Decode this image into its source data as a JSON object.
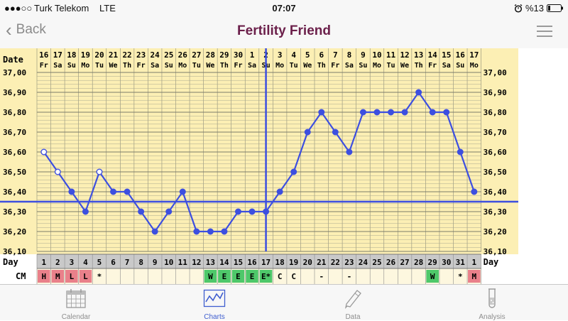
{
  "status_bar": {
    "signal": "●●●○○",
    "carrier": "Turk Telekom",
    "network": "LTE",
    "time": "07:07",
    "battery": "%13"
  },
  "nav": {
    "back_label": "Back",
    "title": "Fertility Friend"
  },
  "tabs": [
    {
      "label": "Calendar",
      "icon": "calendar-icon"
    },
    {
      "label": "Charts",
      "icon": "chart-icon",
      "active": true
    },
    {
      "label": "Data",
      "icon": "pencil-icon"
    },
    {
      "label": "Analysis",
      "icon": "test-tube-icon"
    }
  ],
  "colors": {
    "chart_bg": "#fcefb4",
    "line": "#3d4fe0",
    "title": "#6b1f4a",
    "cm_red": "#e9808a",
    "cm_green": "#4ec86a",
    "day_row": "#c9c9c9"
  },
  "chart_data": {
    "type": "line",
    "row_labels": {
      "date": "Date",
      "day": "Day",
      "cm": "CM"
    },
    "dates": [
      "16",
      "17",
      "18",
      "19",
      "20",
      "21",
      "22",
      "23",
      "24",
      "25",
      "26",
      "27",
      "28",
      "29",
      "30",
      "1",
      "2",
      "3",
      "4",
      "5",
      "6",
      "7",
      "8",
      "9",
      "10",
      "11",
      "12",
      "13",
      "14",
      "15",
      "16",
      "17"
    ],
    "weekdays": [
      "Fr",
      "Sa",
      "Su",
      "Mo",
      "Tu",
      "We",
      "Th",
      "Fr",
      "Sa",
      "Su",
      "Mo",
      "Tu",
      "We",
      "Th",
      "Fr",
      "Sa",
      "Su",
      "Mo",
      "Tu",
      "We",
      "Th",
      "Fr",
      "Sa",
      "Su",
      "Mo",
      "Tu",
      "We",
      "Th",
      "Fr",
      "Sa",
      "Su",
      "Mo"
    ],
    "days": [
      "1",
      "2",
      "3",
      "4",
      "5",
      "6",
      "7",
      "8",
      "9",
      "10",
      "11",
      "12",
      "13",
      "14",
      "15",
      "16",
      "17",
      "18",
      "19",
      "20",
      "21",
      "22",
      "23",
      "24",
      "25",
      "26",
      "27",
      "28",
      "29",
      "30",
      "31",
      "1"
    ],
    "temperatures": [
      36.6,
      36.5,
      36.4,
      36.3,
      36.5,
      36.4,
      36.4,
      36.3,
      36.2,
      36.3,
      36.4,
      36.2,
      36.2,
      36.2,
      36.3,
      36.3,
      36.3,
      36.4,
      36.5,
      36.7,
      36.8,
      36.7,
      36.6,
      36.8,
      36.8,
      36.8,
      36.8,
      36.9,
      36.8,
      36.8,
      36.6,
      36.4
    ],
    "open_points": [
      0,
      1,
      4
    ],
    "cm": [
      "H",
      "M",
      "L",
      "L",
      "*",
      "",
      "",
      "",
      "",
      "",
      "",
      "",
      "W",
      "E",
      "E",
      "E",
      "E*",
      "C",
      "C",
      "",
      "-",
      "",
      "-",
      "",
      "",
      "",
      "",
      "",
      "W",
      "",
      "*",
      "M"
    ],
    "cm_colors": [
      "red",
      "red",
      "red",
      "red",
      "",
      "",
      "",
      "",
      "",
      "",
      "",
      "",
      "green",
      "green",
      "green",
      "green",
      "green",
      "",
      "",
      "",
      "",
      "",
      "",
      "",
      "",
      "",
      "",
      "",
      "green",
      "",
      "",
      "red"
    ],
    "y_ticks": [
      "37,00",
      "36,90",
      "36,80",
      "36,70",
      "36,60",
      "36,50",
      "36,40",
      "36,30",
      "36,20",
      "36,10"
    ],
    "ylim": [
      36.1,
      37.0
    ],
    "coverline": 36.35,
    "ovulation_day_index": 16
  }
}
